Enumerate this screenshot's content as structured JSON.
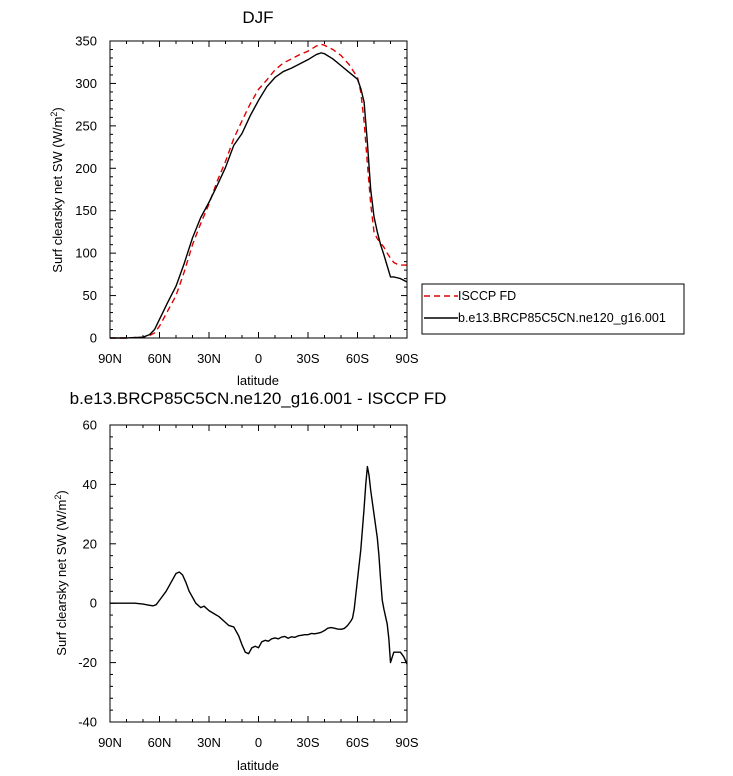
{
  "chart_data": [
    {
      "type": "line",
      "title": "DJF",
      "xlabel": "latitude",
      "ylabel": "Surf clearsky net SW (W/m",
      "ylabel_sup": "2",
      "ylabel_close": ")",
      "xlim": [
        -90,
        90
      ],
      "ylim": [
        0,
        350
      ],
      "xticks": [
        {
          "value": -90,
          "label": "90N"
        },
        {
          "value": -60,
          "label": "60N"
        },
        {
          "value": -30,
          "label": "30N"
        },
        {
          "value": 0,
          "label": "0"
        },
        {
          "value": 30,
          "label": "30S"
        },
        {
          "value": 60,
          "label": "60S"
        },
        {
          "value": 90,
          "label": "90S"
        }
      ],
      "yticks": [
        0,
        50,
        100,
        150,
        200,
        250,
        300,
        350
      ],
      "legend": {
        "placement": "right"
      },
      "series": [
        {
          "name": "ISCCP FD",
          "color": "#e00000",
          "dash": true,
          "x": [
            -90,
            -80,
            -70,
            -66,
            -63,
            -60,
            -55,
            -50,
            -45,
            -40,
            -35,
            -30,
            -25,
            -20,
            -15,
            -10,
            -5,
            0,
            5,
            10,
            15,
            20,
            25,
            30,
            35,
            38,
            40,
            45,
            50,
            55,
            60,
            62,
            64,
            66,
            68,
            70,
            72,
            74,
            76,
            78,
            80,
            82,
            84,
            86,
            88,
            90
          ],
          "y": [
            0,
            0,
            1,
            3,
            6,
            14,
            32,
            50,
            78,
            110,
            135,
            158,
            185,
            208,
            235,
            256,
            276,
            293,
            304,
            316,
            324,
            329,
            334,
            338,
            344,
            346,
            345,
            340,
            333,
            322,
            307,
            290,
            255,
            205,
            158,
            125,
            117,
            112,
            107,
            100,
            94,
            89,
            87,
            86,
            86,
            86
          ]
        },
        {
          "name": "b.e13.BRCP85C5CN.ne120_g16.001",
          "color": "#000000",
          "dash": false,
          "x": [
            -90,
            -80,
            -70,
            -66,
            -63,
            -60,
            -55,
            -50,
            -45,
            -40,
            -35,
            -30,
            -25,
            -20,
            -15,
            -10,
            -5,
            0,
            5,
            10,
            15,
            20,
            25,
            30,
            35,
            38,
            40,
            45,
            50,
            55,
            60,
            62,
            64,
            66,
            68,
            70,
            72,
            74,
            76,
            78,
            80,
            82,
            84,
            86,
            88,
            90
          ],
          "y": [
            0,
            0,
            1,
            4,
            10,
            22,
            42,
            61,
            88,
            118,
            142,
            160,
            180,
            201,
            227,
            241,
            262,
            280,
            296,
            307,
            314,
            318,
            323,
            328,
            334,
            336,
            335,
            329,
            321,
            313,
            305,
            294,
            278,
            230,
            175,
            143,
            125,
            110,
            98,
            85,
            72,
            72,
            71,
            70,
            68,
            66
          ]
        }
      ]
    },
    {
      "type": "line",
      "title": "b.e13.BRCP85C5CN.ne120_g16.001 - ISCCP FD",
      "xlabel": "latitude",
      "ylabel": "Surf clearsky net SW (W/m",
      "ylabel_sup": "2",
      "ylabel_close": ")",
      "xlim": [
        -90,
        90
      ],
      "ylim": [
        -40,
        60
      ],
      "xticks": [
        {
          "value": -90,
          "label": "90N"
        },
        {
          "value": -60,
          "label": "60N"
        },
        {
          "value": -30,
          "label": "30N"
        },
        {
          "value": 0,
          "label": "0"
        },
        {
          "value": 30,
          "label": "30S"
        },
        {
          "value": 60,
          "label": "60S"
        },
        {
          "value": 90,
          "label": "90S"
        }
      ],
      "yticks": [
        -40,
        -20,
        0,
        20,
        40,
        60
      ],
      "series": [
        {
          "color": "#000000",
          "dash": false,
          "x": [
            -90,
            -80,
            -75,
            -70,
            -66,
            -64,
            -62,
            -60,
            -56,
            -52,
            -50,
            -48,
            -46,
            -44,
            -42,
            -40,
            -38,
            -35,
            -33,
            -30,
            -27,
            -24,
            -21,
            -18,
            -15,
            -12,
            -10,
            -8,
            -6,
            -4,
            -2,
            0,
            2,
            4,
            6,
            8,
            10,
            12,
            14,
            16,
            18,
            20,
            22,
            24,
            26,
            28,
            30,
            32,
            34,
            36,
            38,
            40,
            42,
            44,
            46,
            48,
            50,
            52,
            54,
            56,
            57,
            58,
            59,
            60,
            62,
            63,
            64,
            65,
            66,
            67,
            68,
            69,
            70,
            71,
            72,
            73,
            74,
            75,
            76,
            77,
            78,
            79,
            80,
            82,
            84,
            86,
            88,
            90
          ],
          "y": [
            0,
            0,
            0,
            -0.3,
            -0.7,
            -0.9,
            -0.5,
            1,
            4,
            8,
            10,
            10.5,
            9.5,
            7,
            4,
            2,
            0,
            -1.5,
            -1,
            -2.5,
            -3.5,
            -4.5,
            -6,
            -7.5,
            -8,
            -11,
            -14,
            -16.5,
            -17,
            -15,
            -14.5,
            -15,
            -13,
            -12.5,
            -12.8,
            -12,
            -11.7,
            -12,
            -11.4,
            -11.2,
            -11.8,
            -11.3,
            -11.5,
            -11,
            -10.8,
            -10.6,
            -10.6,
            -10.2,
            -10.3,
            -10.1,
            -9.8,
            -9.2,
            -8.4,
            -8.2,
            -8.4,
            -8.7,
            -8.8,
            -8.5,
            -7.5,
            -6,
            -5,
            -2,
            3,
            8,
            18,
            25,
            32,
            40,
            46,
            43,
            38,
            34,
            30,
            26,
            22,
            16,
            8,
            1,
            -2,
            -4.5,
            -7,
            -12,
            -20,
            -16.5,
            -16.5,
            -16.5,
            -18,
            -20.5
          ]
        }
      ]
    }
  ]
}
